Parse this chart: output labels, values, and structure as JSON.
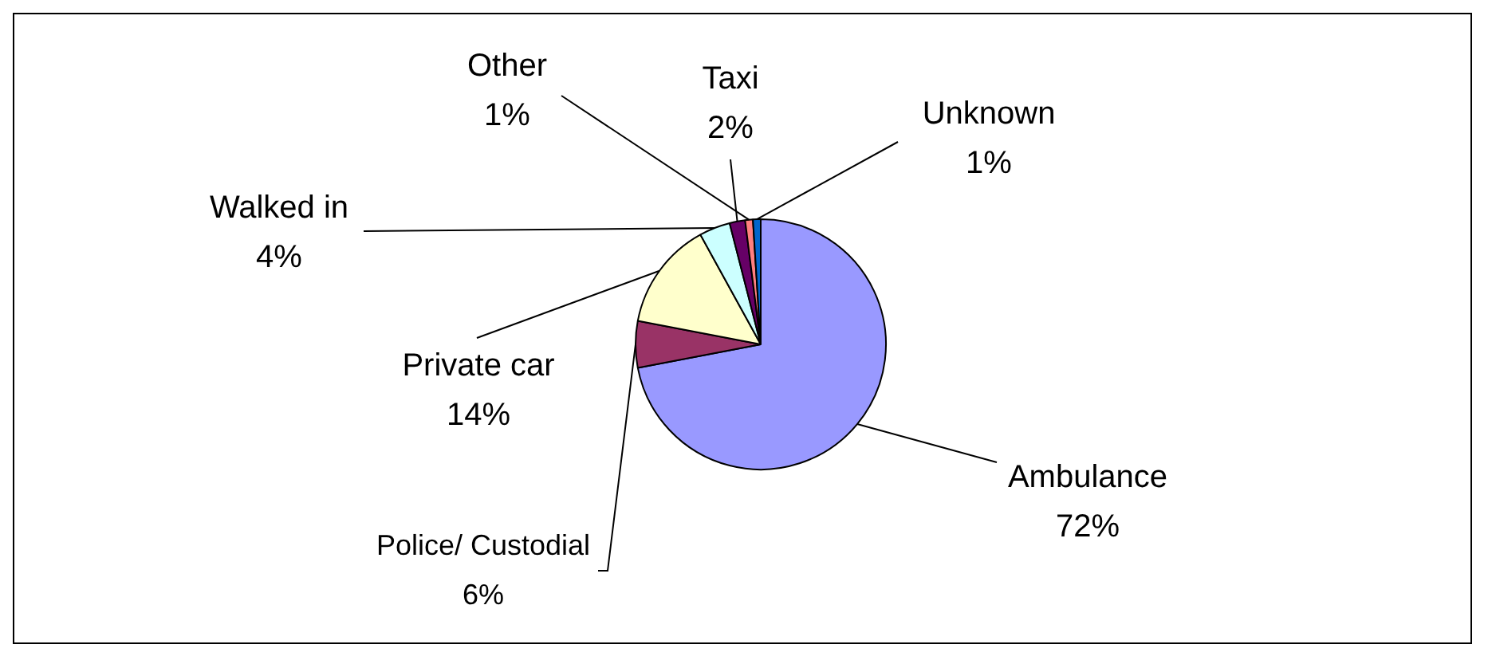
{
  "chart_data": {
    "type": "pie",
    "categories": [
      "Ambulance",
      "Police/ Custodial",
      "Private car",
      "Walked in",
      "Taxi",
      "Other",
      "Unknown"
    ],
    "values": [
      72,
      6,
      14,
      4,
      2,
      1,
      1
    ],
    "colors": [
      "#9999ff",
      "#993366",
      "#ffffcc",
      "#ccffff",
      "#660066",
      "#ff8080",
      "#0066cc"
    ],
    "value_labels": [
      "72%",
      "6%",
      "14%",
      "4%",
      "2%",
      "1%",
      "1%"
    ],
    "legend": false
  }
}
